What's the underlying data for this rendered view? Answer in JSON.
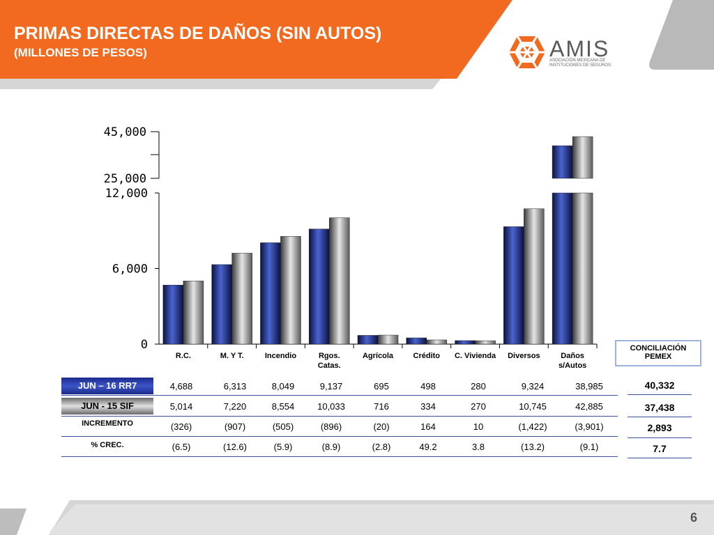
{
  "header": {
    "title": "PRIMAS DIRECTAS DE  DAÑOS (SIN AUTOS)",
    "subtitle": "(MILLONES DE PESOS)"
  },
  "logo": {
    "name": "AMIS",
    "line1": "ASOCIACIÓN MEXICANA DE",
    "line2": "INSTITUCIONES DE SEGUROS"
  },
  "colors": {
    "orange": "#f26a1f",
    "blue_series": "#2b3f9e",
    "gray_series": "#9c9c9c",
    "band_gray": "#d6d6d6"
  },
  "chart_data": {
    "type": "bar",
    "categories": [
      "R.C.",
      "M. Y T.",
      "Incendio",
      "Rgos.\nCatas.",
      "Agrícola",
      "Crédito",
      "C. Vivienda",
      "Diversos",
      "Daños\ns/Autos"
    ],
    "series": [
      {
        "name": "JUN – 16 RR7",
        "values": [
          4688,
          6313,
          8049,
          9137,
          695,
          498,
          280,
          9324,
          38985
        ]
      },
      {
        "name": "JUN -  15 SIF",
        "values": [
          5014,
          7220,
          8554,
          10033,
          716,
          334,
          270,
          10745,
          42885
        ]
      }
    ],
    "ylim_lower": [
      0,
      12000
    ],
    "ylim_upper": [
      25000,
      45000
    ],
    "yticks_lower": [
      "0",
      "6,000",
      "12,000"
    ],
    "yticks_upper": [
      "25,000",
      "45,000"
    ],
    "axis_break": true
  },
  "table": {
    "rows": [
      {
        "label": "JUN – 16 RR7",
        "values": [
          "4,688",
          "6,313",
          "8,049",
          "9,137",
          "695",
          "498",
          "280",
          "9,324",
          "38,985"
        ]
      },
      {
        "label": "JUN -  15 SIF",
        "values": [
          "5,014",
          "7,220",
          "8,554",
          "10,033",
          "716",
          "334",
          "270",
          "10,745",
          "42,885"
        ]
      },
      {
        "label": "INCREMENTO",
        "values": [
          "(326)",
          "(907)",
          "(505)",
          "(896)",
          "(20)",
          "164",
          "10",
          "(1,422)",
          "(3,901)"
        ]
      },
      {
        "label": "% CREC.",
        "values": [
          "(6.5)",
          "(12.6)",
          "(5.9)",
          "(8.9)",
          "(2.8)",
          "49.2",
          "3.8",
          "(13.2)",
          "(9.1)"
        ]
      }
    ]
  },
  "conciliacion": {
    "header_line1": "CONCILIACIÓN",
    "header_line2": "PEMEX",
    "values": [
      "40,332",
      "37,438",
      "2,893",
      "7.7"
    ]
  },
  "page_number": "6"
}
